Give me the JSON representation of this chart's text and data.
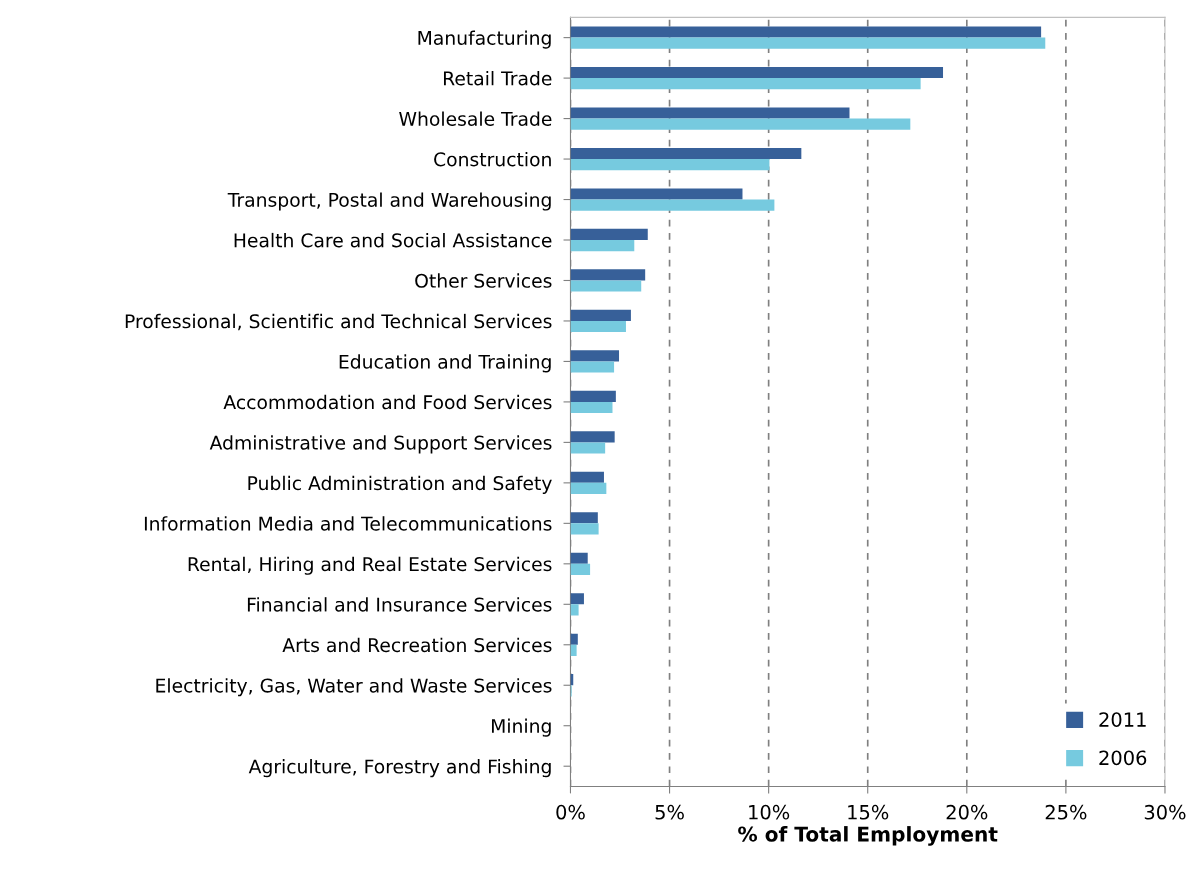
{
  "chart_data": {
    "type": "bar",
    "orientation": "horizontal",
    "xlabel": "% of Total Employment",
    "categories": [
      "Manufacturing",
      "Retail Trade",
      "Wholesale Trade",
      "Construction",
      "Transport, Postal and Warehousing",
      "Health Care and Social Assistance",
      "Other Services",
      "Professional, Scientific and Technical Services",
      "Education and Training",
      "Accommodation and Food Services",
      "Administrative and Support Services",
      "Public Administration and Safety",
      "Information Media and Telecommunications",
      "Rental, Hiring and Real Estate Services",
      "Financial and Insurance Services",
      "Arts and Recreation Services",
      "Electricity, Gas, Water and Waste Services",
      "Mining",
      "Agriculture, Forestry and Fishing"
    ],
    "series": [
      {
        "name": "2011",
        "color": "#376099",
        "values": [
          23.75,
          18.8,
          14.08,
          11.65,
          8.68,
          3.9,
          3.77,
          3.05,
          2.45,
          2.29,
          2.23,
          1.69,
          1.38,
          0.87,
          0.68,
          0.37,
          0.14,
          null,
          0
        ]
      },
      {
        "name": "2006",
        "color": "#76cadf",
        "values": [
          23.96,
          17.67,
          17.15,
          10.04,
          10.29,
          3.22,
          3.57,
          2.8,
          2.2,
          2.12,
          1.75,
          1.81,
          1.42,
          0.99,
          0.41,
          0.31,
          0.06,
          null,
          0
        ]
      }
    ],
    "xlim": [
      0,
      30
    ],
    "xticks": [
      {
        "value": 0,
        "label": "0%"
      },
      {
        "value": 5,
        "label": "5%"
      },
      {
        "value": 10,
        "label": "10%"
      },
      {
        "value": 15,
        "label": "15%"
      },
      {
        "value": 20,
        "label": "20%"
      },
      {
        "value": 25,
        "label": "25%"
      },
      {
        "value": 30,
        "label": "30%"
      }
    ],
    "grid": "x",
    "legend": "bottom right"
  }
}
